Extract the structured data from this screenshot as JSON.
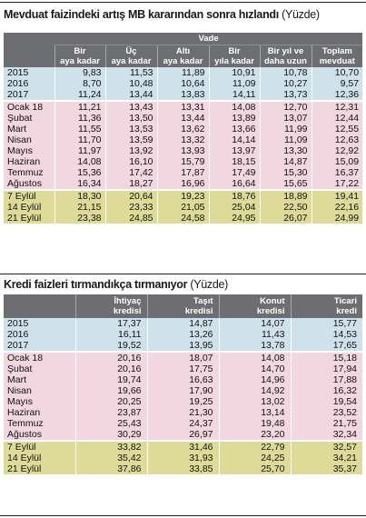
{
  "deposit": {
    "title": "Mevduat faizindeki artış MB kararından sonra hızlandı",
    "unit": "(Yüzde)",
    "group_header": "Vade",
    "columns": [
      "Bir aya kadar",
      "Üç aya kadar",
      "Altı aya kadar",
      "Bir yıla kadar",
      "Bir yıl ve daha uzun",
      "Toplam mevduat"
    ],
    "rows": [
      {
        "label": "2015",
        "group": "year",
        "values": [
          "9,83",
          "11,53",
          "11,89",
          "10,91",
          "10,78",
          "10,70"
        ]
      },
      {
        "label": "2016",
        "group": "year",
        "values": [
          "8,70",
          "10,48",
          "10,64",
          "11,09",
          "10,27",
          "9,57"
        ]
      },
      {
        "label": "2017",
        "group": "year",
        "values": [
          "11,24",
          "13,44",
          "13,83",
          "14,11",
          "13,73",
          "12,36"
        ]
      },
      {
        "label": "Ocak 18",
        "group": "month",
        "values": [
          "11,21",
          "13,43",
          "13,31",
          "14,08",
          "12,70",
          "12,31"
        ]
      },
      {
        "label": "Şubat",
        "group": "month",
        "values": [
          "11,36",
          "13,50",
          "13,44",
          "13,89",
          "13,07",
          "12,44"
        ]
      },
      {
        "label": "Mart",
        "group": "month",
        "values": [
          "11,55",
          "13,53",
          "13,62",
          "13,66",
          "11,99",
          "12,55"
        ]
      },
      {
        "label": "Nisan",
        "group": "month",
        "values": [
          "11,70",
          "13,59",
          "13,32",
          "14,14",
          "11,09",
          "12,63"
        ]
      },
      {
        "label": "Mayıs",
        "group": "month",
        "values": [
          "11,97",
          "13,92",
          "13,93",
          "13,97",
          "13,30",
          "12,92"
        ]
      },
      {
        "label": "Haziran",
        "group": "month",
        "values": [
          "14,08",
          "16,10",
          "15,79",
          "18,15",
          "14,87",
          "15,09"
        ]
      },
      {
        "label": "Temmuz",
        "group": "month",
        "values": [
          "15,36",
          "17,42",
          "17,87",
          "17,49",
          "15,30",
          "16,37"
        ]
      },
      {
        "label": "Ağustos",
        "group": "month",
        "values": [
          "16,34",
          "18,27",
          "16,96",
          "16,64",
          "15,65",
          "17,22"
        ]
      },
      {
        "label": "7 Eylül",
        "group": "sept",
        "values": [
          "18,30",
          "20,64",
          "19,23",
          "18,76",
          "18,89",
          "19,41"
        ]
      },
      {
        "label": "14 Eylül",
        "group": "sept",
        "values": [
          "21,15",
          "23,33",
          "21,05",
          "25,04",
          "22,50",
          "22,16"
        ]
      },
      {
        "label": "21 Eylül",
        "group": "sept",
        "values": [
          "23,38",
          "24,85",
          "24,58",
          "24,95",
          "26,07",
          "24,99"
        ]
      }
    ]
  },
  "credit": {
    "title": "Kredi faizleri tırmandıkça tırmanıyor",
    "unit": "(Yüzde)",
    "columns": [
      "İhtiyaç kredisi",
      "Taşıt kredisi",
      "Konut kredisi",
      "Ticari kredi"
    ],
    "rows": [
      {
        "label": "2015",
        "group": "year",
        "values": [
          "17,37",
          "14,87",
          "14,07",
          "15,77"
        ]
      },
      {
        "label": "2016",
        "group": "year",
        "values": [
          "16,11",
          "13,26",
          "11,43",
          "14,53"
        ]
      },
      {
        "label": "2017",
        "group": "year",
        "values": [
          "19,52",
          "13,95",
          "13,78",
          "17,65"
        ]
      },
      {
        "label": "Ocak 18",
        "group": "month",
        "values": [
          "20,16",
          "18,07",
          "14,08",
          "15,18"
        ]
      },
      {
        "label": "Şubat",
        "group": "month",
        "values": [
          "20,16",
          "17,75",
          "14,70",
          "17,94"
        ]
      },
      {
        "label": "Mart",
        "group": "month",
        "values": [
          "19,74",
          "16,63",
          "14,96",
          "17,88"
        ]
      },
      {
        "label": "Nisan",
        "group": "month",
        "values": [
          "19,66",
          "17,90",
          "14,92",
          "16,32"
        ]
      },
      {
        "label": "Mayıs",
        "group": "month",
        "values": [
          "20,25",
          "19,25",
          "13,02",
          "19,54"
        ]
      },
      {
        "label": "Haziran",
        "group": "month",
        "values": [
          "23,87",
          "21,30",
          "13,14",
          "23,52"
        ]
      },
      {
        "label": "Temmuz",
        "group": "month",
        "values": [
          "25,43",
          "24,37",
          "19,48",
          "21,75"
        ]
      },
      {
        "label": "Ağustos",
        "group": "month",
        "values": [
          "30,29",
          "26,97",
          "23,20",
          "32,34"
        ]
      },
      {
        "label": "7 Eylül",
        "group": "sept",
        "values": [
          "33,82",
          "31,46",
          "22,79",
          "32,57"
        ]
      },
      {
        "label": "14 Eylül",
        "group": "sept",
        "values": [
          "35,42",
          "31,93",
          "24,25",
          "34,21"
        ]
      },
      {
        "label": "21 Eylül",
        "group": "sept",
        "values": [
          "37,86",
          "33,85",
          "25,70",
          "35,37"
        ]
      }
    ]
  }
}
